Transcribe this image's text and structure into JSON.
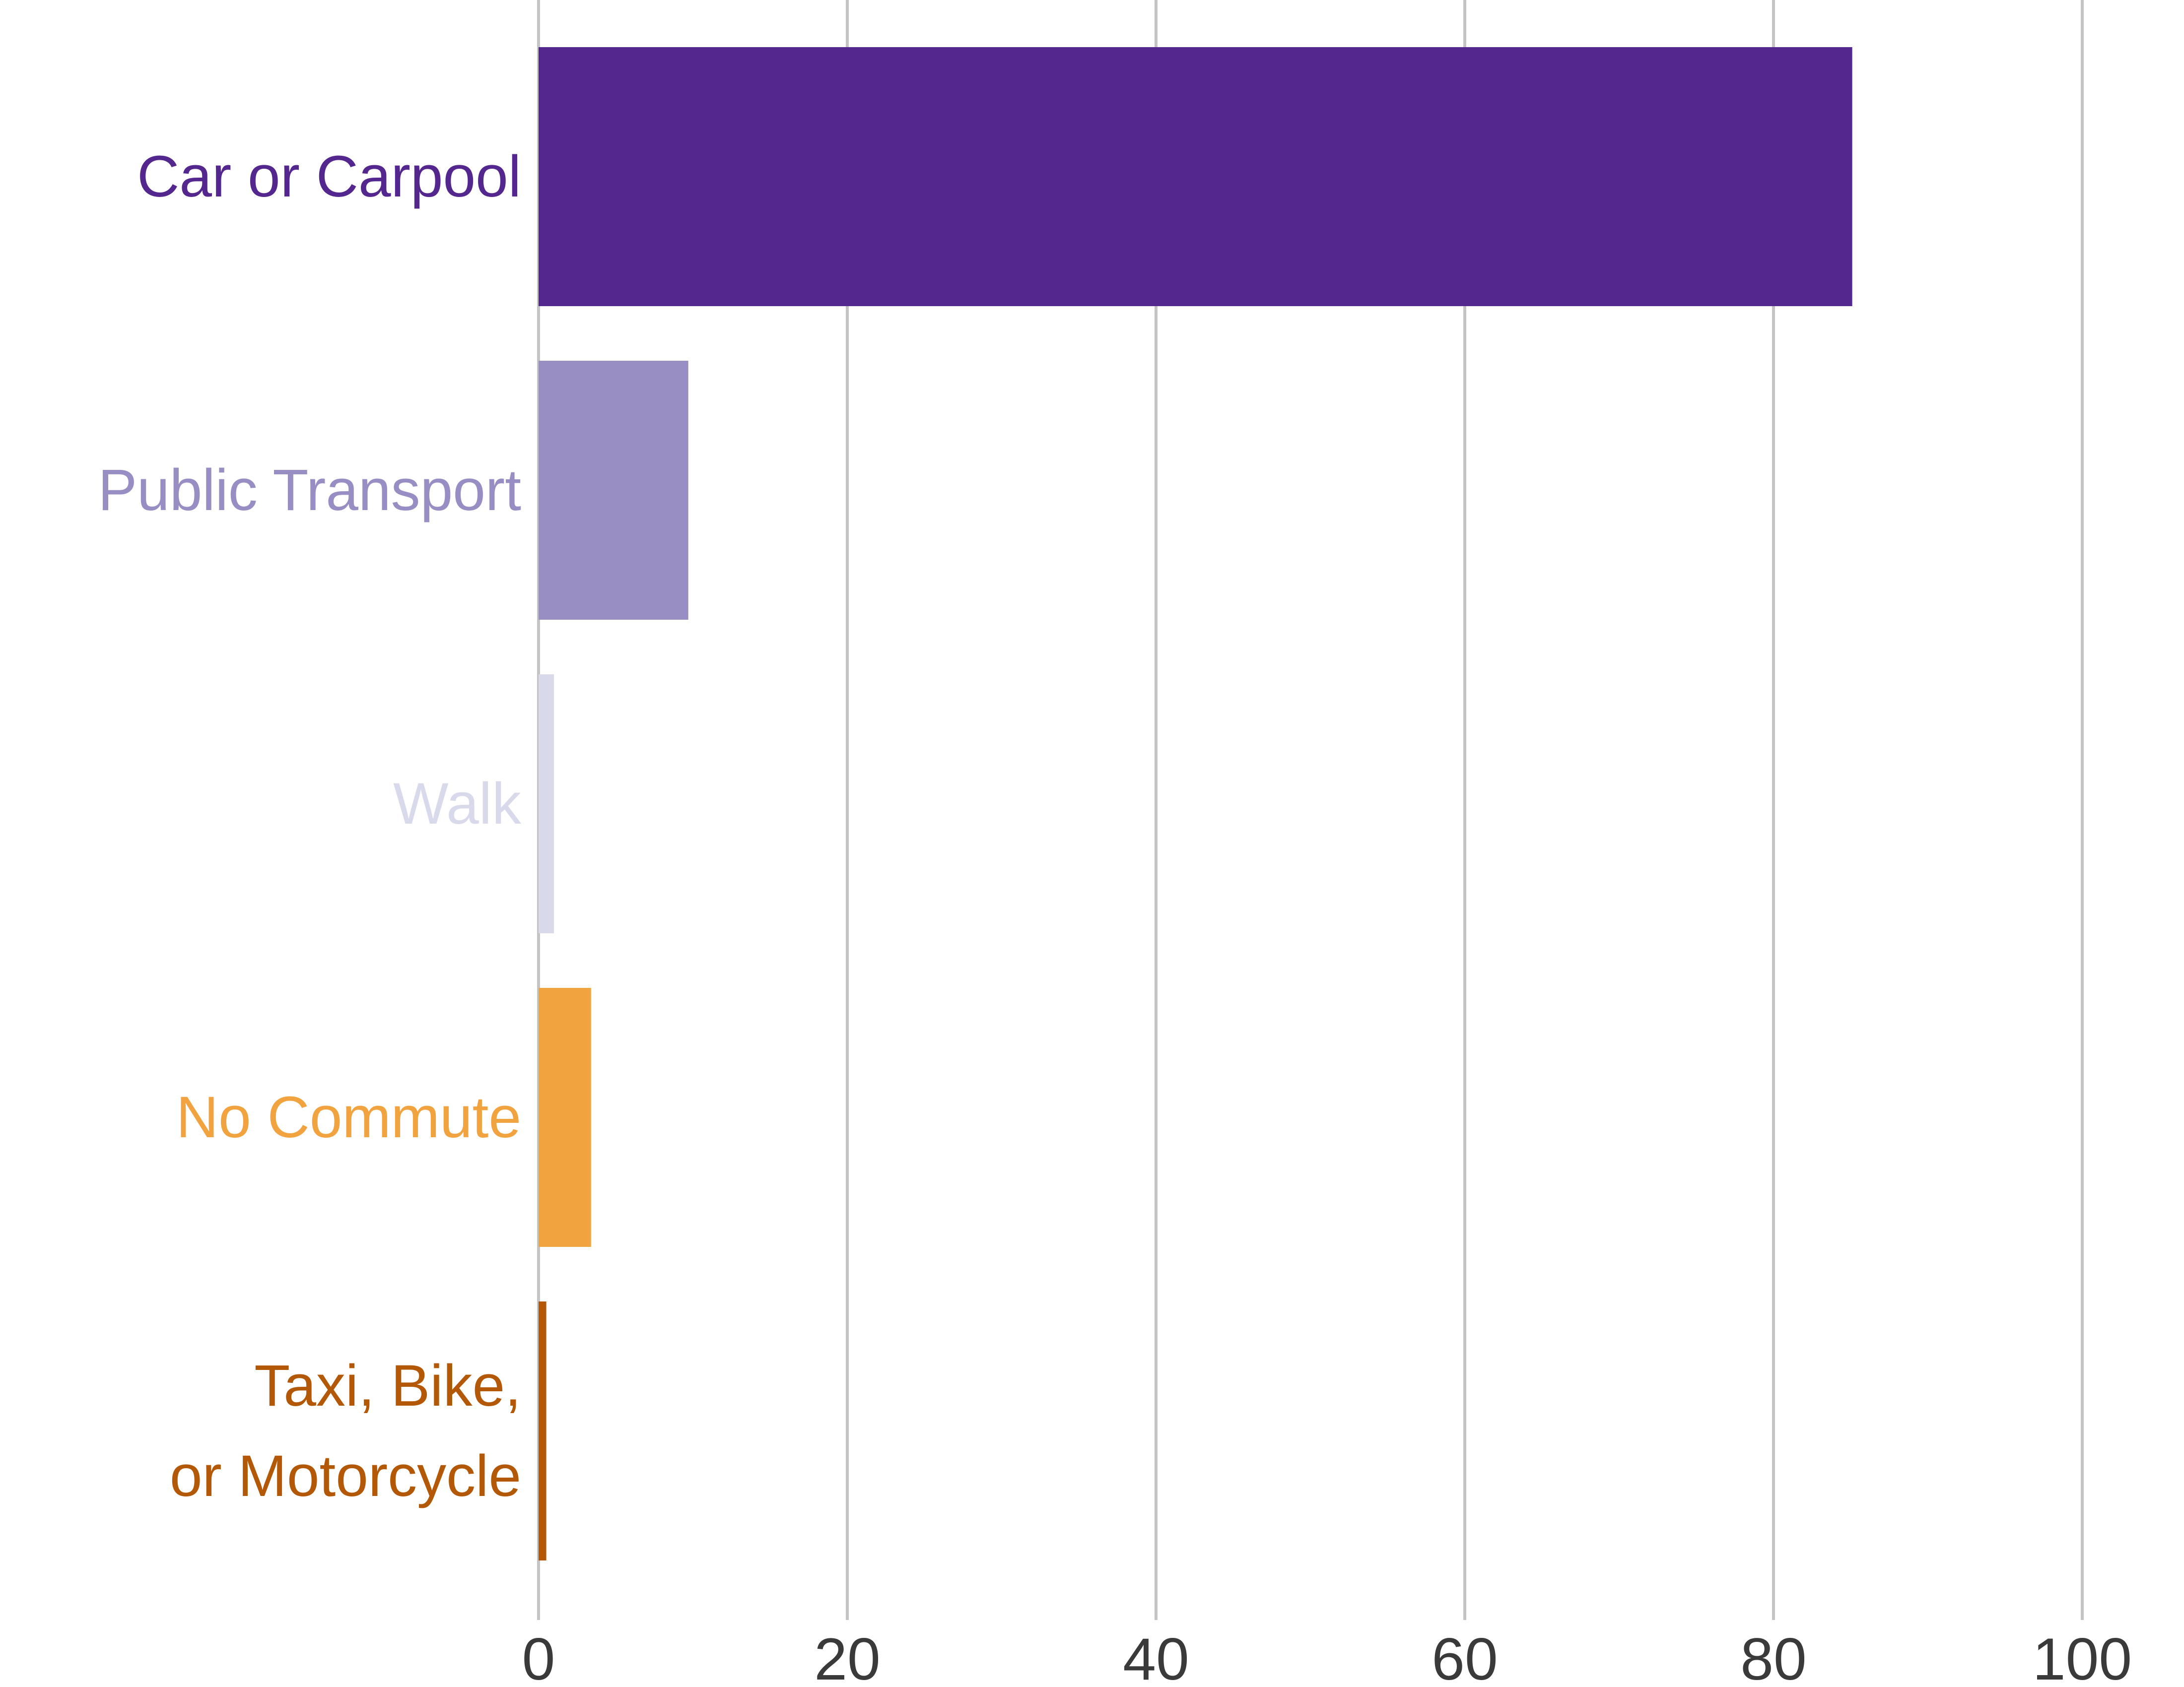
{
  "chart_data": {
    "type": "bar",
    "orientation": "horizontal",
    "title": "",
    "xlabel": "",
    "ylabel": "",
    "categories": [
      {
        "lines": [
          "Car or Carpool"
        ],
        "color": "#54278f"
      },
      {
        "lines": [
          "Public Transport"
        ],
        "color": "#998ec3"
      },
      {
        "lines": [
          "Walk"
        ],
        "color": "#d8daeb"
      },
      {
        "lines": [
          "No Commute"
        ],
        "color": "#f1a340"
      },
      {
        "lines": [
          "Taxi, Bike,",
          "or Motorcycle"
        ],
        "color": "#b35806"
      }
    ],
    "values": [
      85.1,
      9.7,
      1.0,
      3.4,
      0.5
    ],
    "xlim": [
      0,
      100
    ],
    "xticks": [
      0,
      20,
      40,
      60,
      80,
      100
    ],
    "xtick_labels": [
      "0",
      "20",
      "40",
      "60",
      "80",
      "100"
    ],
    "grid": "vertical",
    "legend": "none"
  }
}
